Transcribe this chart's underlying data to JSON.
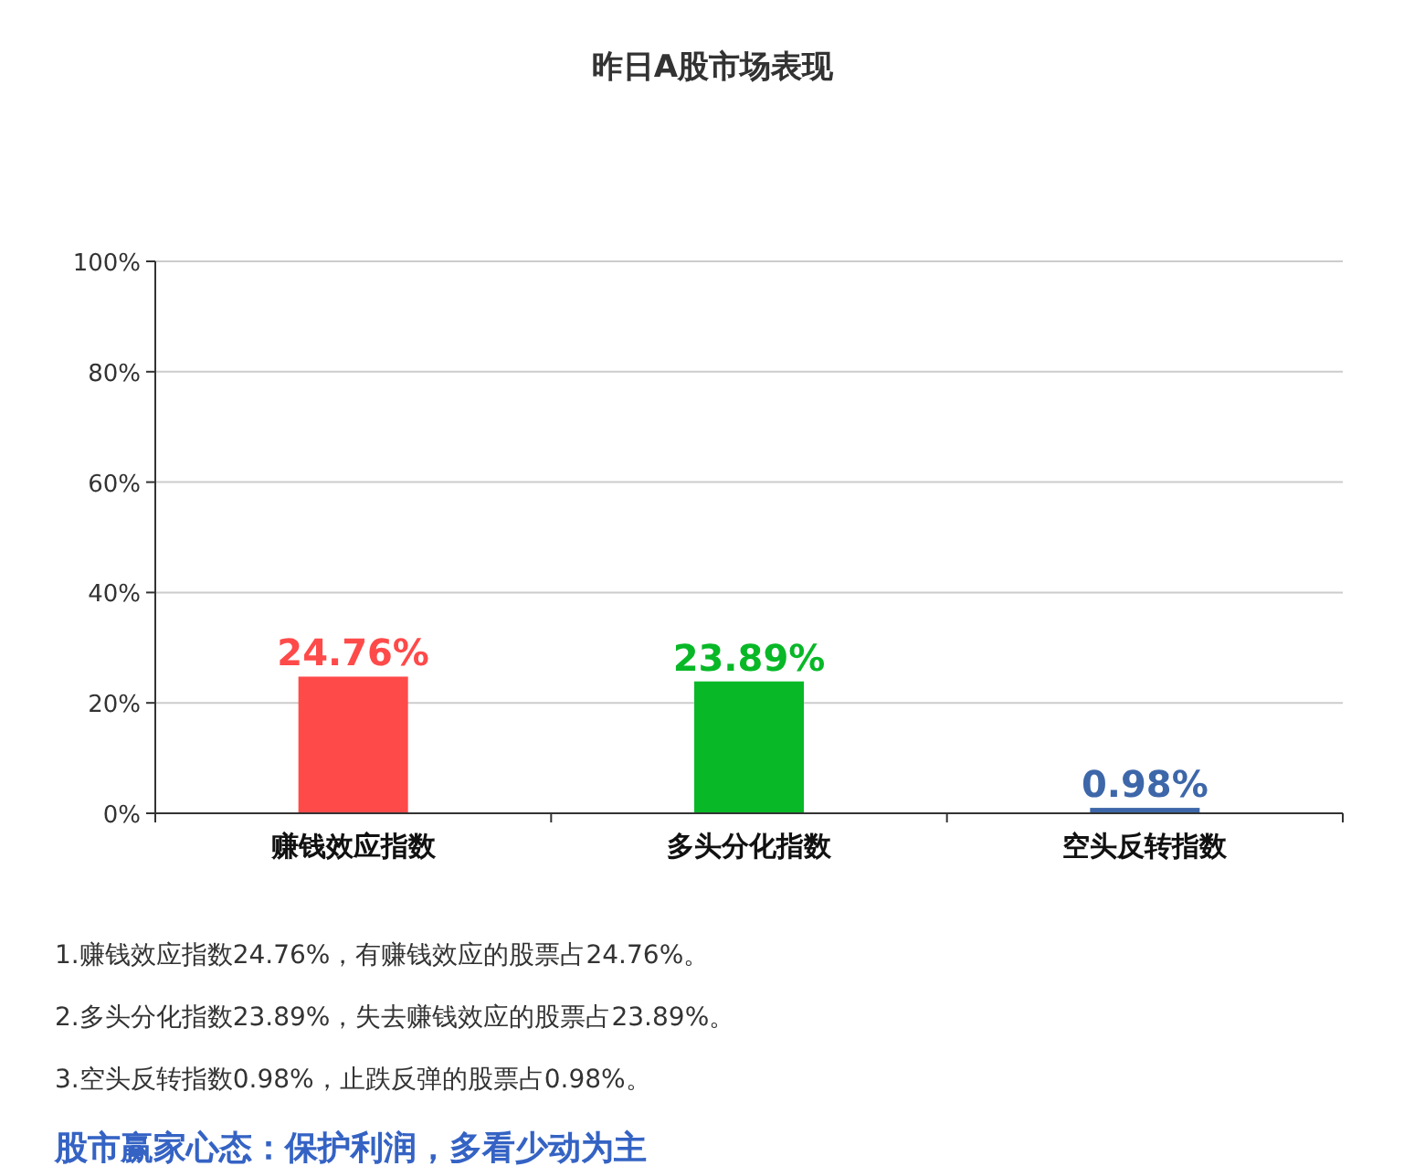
{
  "chart_data": {
    "type": "bar",
    "title": "昨日A股市场表现",
    "categories": [
      "赚钱效应指数",
      "多头分化指数",
      "空头反转指数"
    ],
    "values": [
      24.76,
      23.89,
      0.98
    ],
    "colors": [
      "#ff4a4a",
      "#08b827",
      "#3d67a9"
    ],
    "value_labels": [
      "24.76%",
      "23.89%",
      "0.98%"
    ],
    "ylim": [
      0,
      100
    ],
    "yticks": [
      {
        "value": 0,
        "label": "0%"
      },
      {
        "value": 20,
        "label": "20%"
      },
      {
        "value": 40,
        "label": "40%"
      },
      {
        "value": 60,
        "label": "60%"
      },
      {
        "value": 80,
        "label": "80%"
      },
      {
        "value": 100,
        "label": "100%"
      }
    ],
    "grid": "y",
    "annotations": [
      "1.赚钱效应指数24.76%，有赚钱效应的股票占24.76%。",
      "2.多头分化指数23.89%，失去赚钱效应的股票占23.89%。",
      "3.空头反转指数0.98%，止跌反弹的股票占0.98%。",
      "股市赢家心态：保护利润，多看少动为主"
    ]
  }
}
